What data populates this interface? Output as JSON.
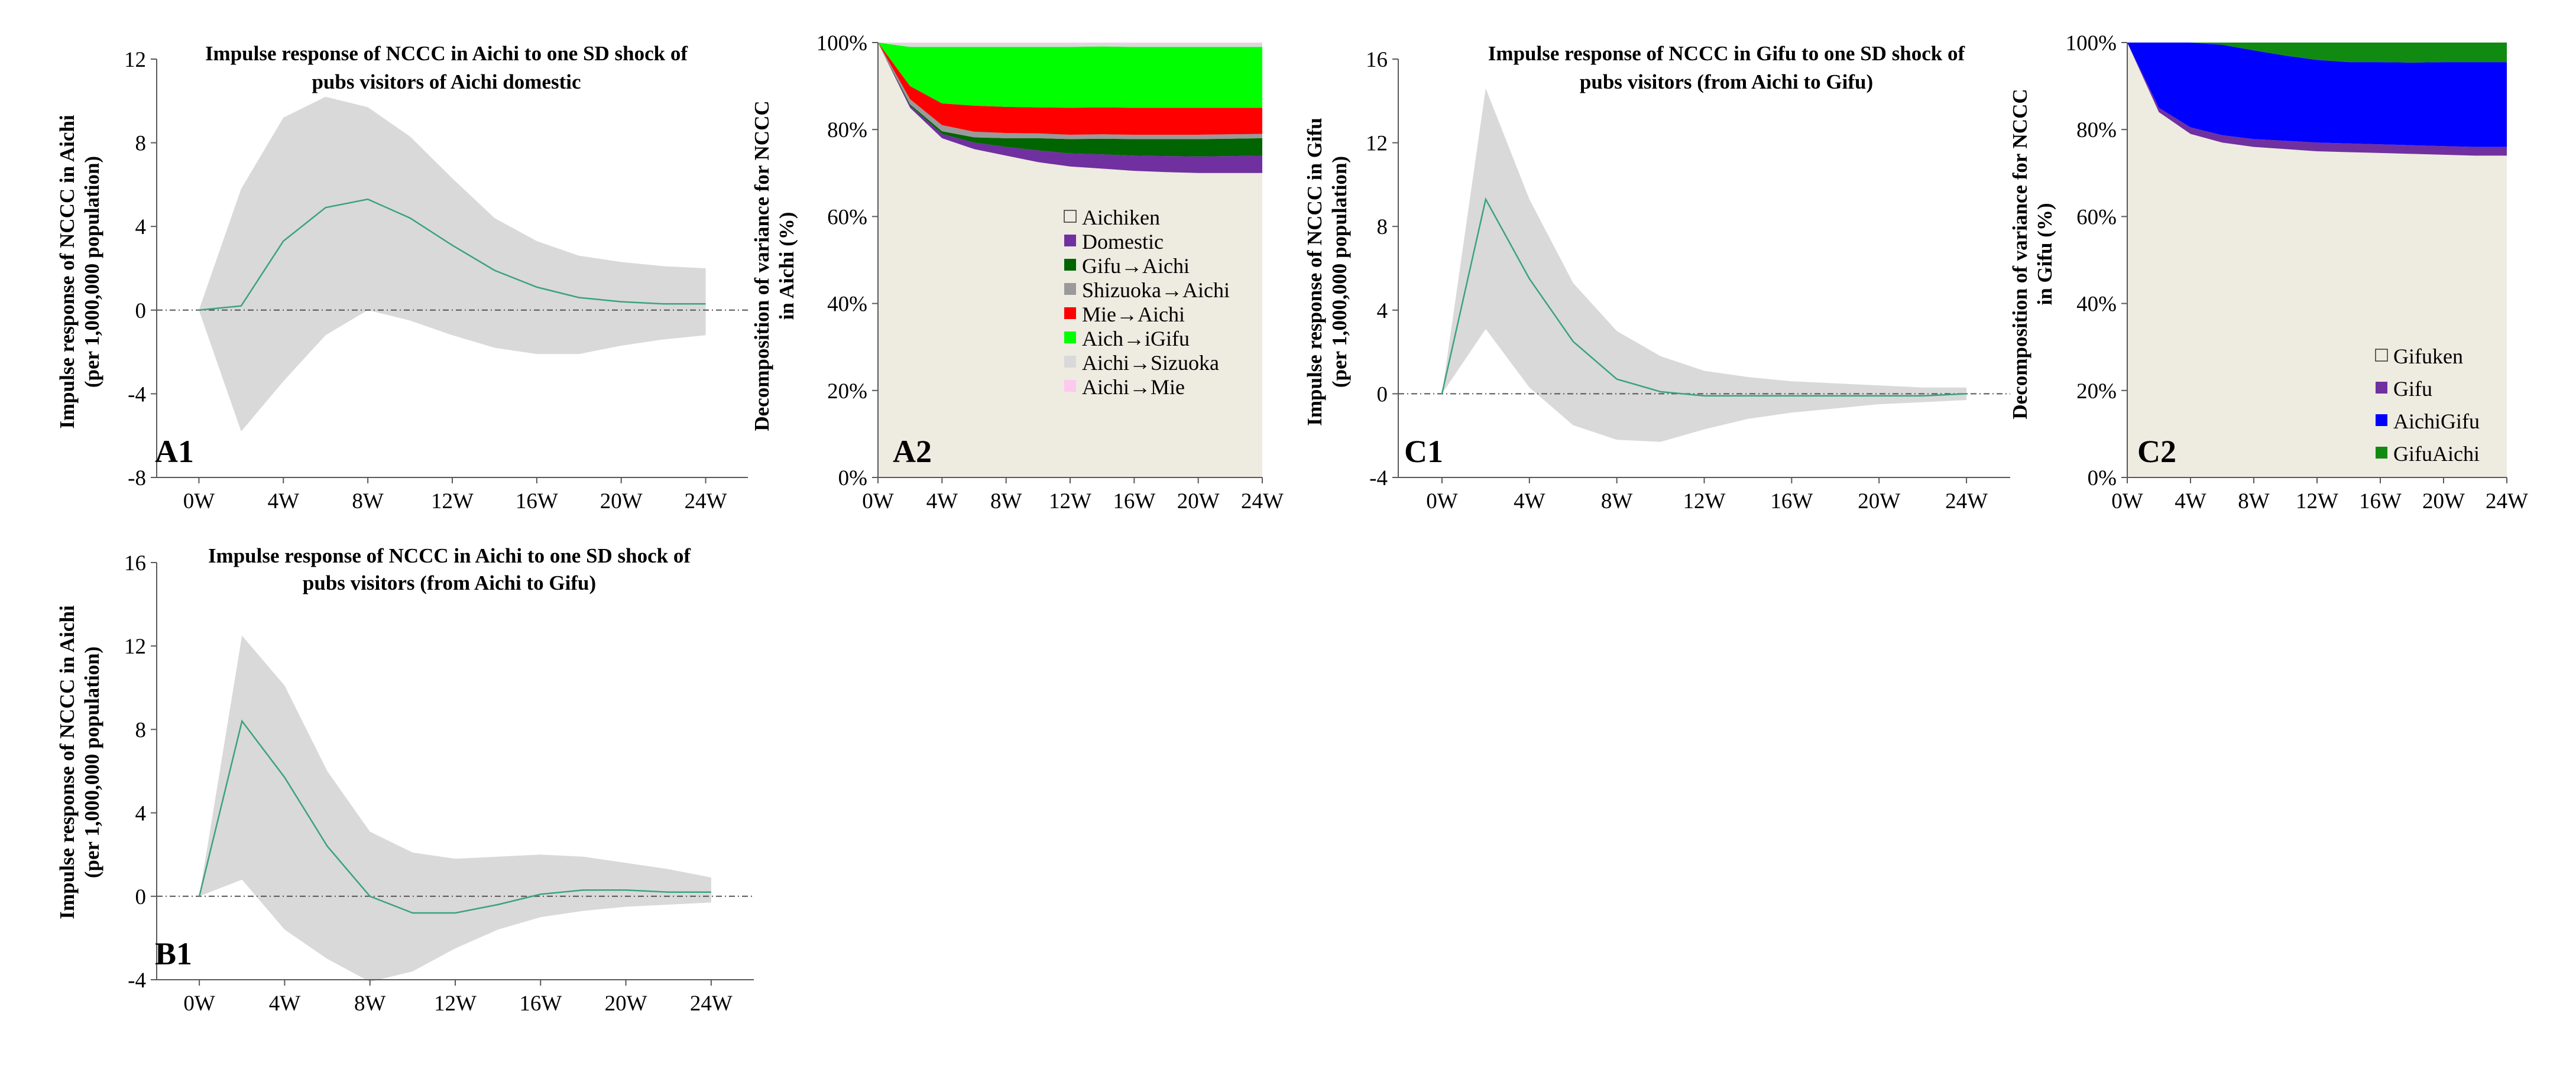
{
  "figure": {
    "background": "#ffffff"
  },
  "colors": {
    "band": "#d9d9d9",
    "irf_line": "#3aa37a",
    "zero_line": "#555555",
    "axis": "#595959",
    "plot_bg": "#eeebe1"
  },
  "chart_data": [
    {
      "id": "A1",
      "type": "line",
      "panel_label": "A1",
      "title": "Impulse response of NCCC in Aichi to one SD shock of pubs visitors of Aichi domestic",
      "title_lines": [
        "Impulse response of NCCC in Aichi to one SD shock of",
        "pubs visitors of Aichi domestic"
      ],
      "ylabel_lines": [
        "Impulse response of NCCC in Aichi",
        "(per 1,000,000 population)"
      ],
      "xlabel": "",
      "x": [
        0,
        2,
        4,
        6,
        8,
        10,
        12,
        14,
        16,
        18,
        20,
        22,
        24
      ],
      "xlim": [
        -2,
        26
      ],
      "ylim": [
        -8,
        12
      ],
      "yticks": [
        -8,
        -4,
        0,
        4,
        8,
        12
      ],
      "ytick_labels": [
        "-8",
        "-4",
        "0",
        "4",
        "8",
        "12"
      ],
      "xticks": [
        0,
        4,
        8,
        12,
        16,
        20,
        24
      ],
      "xtick_labels": [
        "0W",
        "4W",
        "8W",
        "12W",
        "16W",
        "20W",
        "24W"
      ],
      "series": [
        {
          "name": "Impulse response",
          "values": [
            0,
            0.2,
            3.3,
            4.9,
            5.3,
            4.4,
            3.1,
            1.9,
            1.1,
            0.6,
            0.4,
            0.3,
            0.3
          ]
        },
        {
          "name": "Upper bound",
          "values": [
            0,
            5.8,
            9.2,
            10.2,
            9.7,
            8.3,
            6.3,
            4.4,
            3.3,
            2.6,
            2.3,
            2.1,
            2.0
          ]
        },
        {
          "name": "Lower bound",
          "values": [
            0,
            -5.8,
            -3.4,
            -1.2,
            0,
            -0.5,
            -1.2,
            -1.8,
            -2.1,
            -2.1,
            -1.7,
            -1.4,
            -1.2
          ]
        }
      ]
    },
    {
      "id": "A2",
      "type": "area",
      "panel_label": "A2",
      "title": "",
      "ylabel_lines": [
        "Decomposition of variance for NCCC",
        "in Aichi (%)"
      ],
      "x": [
        0,
        2,
        4,
        6,
        8,
        10,
        12,
        14,
        16,
        18,
        20,
        22,
        24
      ],
      "xlim": [
        0,
        24
      ],
      "ylim": [
        0,
        100
      ],
      "yticks": [
        0,
        20,
        40,
        60,
        80,
        100
      ],
      "ytick_labels": [
        "0%",
        "20%",
        "40%",
        "60%",
        "80%",
        "100%"
      ],
      "xticks": [
        0,
        4,
        8,
        12,
        16,
        20,
        24
      ],
      "xtick_labels": [
        "0W",
        "4W",
        "8W",
        "12W",
        "16W",
        "20W",
        "24W"
      ],
      "series": [
        {
          "name": "Aichiken",
          "color": "#eeebe1",
          "values": [
            100,
            85,
            78,
            75.5,
            74,
            72.5,
            71.5,
            71,
            70.5,
            70.2,
            70,
            70,
            70
          ]
        },
        {
          "name": "Domestic",
          "color": "#7030a0",
          "values": [
            0,
            0.5,
            1,
            1.5,
            2,
            2.7,
            3,
            3.3,
            3.5,
            3.7,
            3.8,
            3.9,
            4
          ]
        },
        {
          "name": "Gifu→Aichi",
          "color": "#006400",
          "values": [
            0,
            0.3,
            0.6,
            1.2,
            2,
            2.8,
            3.3,
            3.6,
            3.8,
            3.9,
            4,
            4,
            4
          ]
        },
        {
          "name": "Shizuoka→Aichi",
          "color": "#9a9a9a",
          "values": [
            0,
            1.2,
            1.4,
            1.3,
            1.2,
            1.1,
            1,
            1,
            1,
            1,
            1,
            1,
            1
          ]
        },
        {
          "name": "Mie→Aichi",
          "color": "#ff0000",
          "values": [
            0,
            3,
            5,
            6,
            6,
            6,
            6.2,
            6.2,
            6.2,
            6.2,
            6.2,
            6.1,
            6
          ]
        },
        {
          "name": "Aich→iGifu",
          "color": "#00ff00",
          "values": [
            0,
            9,
            13,
            13.5,
            13.8,
            13.9,
            14,
            14,
            14,
            14,
            14,
            14,
            14
          ]
        },
        {
          "name": "Aichi→Sizuoka",
          "color": "#d9d9d9",
          "values": [
            0,
            0.8,
            0.8,
            0.8,
            0.8,
            0.8,
            0.8,
            0.8,
            0.8,
            0.8,
            0.8,
            0.8,
            0.8
          ]
        },
        {
          "name": "Aichi→Mie",
          "color": "#ffc8ee",
          "values": [
            0,
            0.2,
            0.2,
            0.2,
            0.2,
            0.2,
            0.2,
            0.2,
            0.2,
            0.2,
            0.2,
            0.2,
            0.2
          ]
        }
      ],
      "legend_title": "Aichiken",
      "legend_position": "center-right"
    },
    {
      "id": "C1",
      "type": "line",
      "panel_label": "C1",
      "title": "Impulse response of NCCC in Gifu to one SD shock of pubs visitors (from Aichi to Gifu)",
      "title_lines": [
        "Impulse response of NCCC in Gifu to one SD shock of",
        "pubs visitors (from Aichi to Gifu)"
      ],
      "ylabel_lines": [
        "Impulse response of NCCC in Gifu",
        "(per 1,000,000 population)"
      ],
      "x": [
        0,
        2,
        4,
        6,
        8,
        10,
        12,
        14,
        16,
        18,
        20,
        22,
        24
      ],
      "xlim": [
        -2,
        26
      ],
      "ylim": [
        -4,
        16
      ],
      "yticks": [
        -4,
        0,
        4,
        8,
        12,
        16
      ],
      "ytick_labels": [
        "-4",
        "0",
        "4",
        "8",
        "12",
        "16"
      ],
      "xticks": [
        0,
        4,
        8,
        12,
        16,
        20,
        24
      ],
      "xtick_labels": [
        "0W",
        "4W",
        "8W",
        "12W",
        "16W",
        "20W",
        "24W"
      ],
      "series": [
        {
          "name": "Impulse response",
          "values": [
            0,
            9.3,
            5.5,
            2.5,
            0.7,
            0.1,
            -0.1,
            -0.1,
            -0.1,
            -0.1,
            -0.1,
            -0.1,
            0
          ]
        },
        {
          "name": "Upper bound",
          "values": [
            0,
            14.6,
            9.3,
            5.3,
            3.0,
            1.8,
            1.1,
            0.8,
            0.6,
            0.5,
            0.4,
            0.3,
            0.3
          ]
        },
        {
          "name": "Lower bound",
          "values": [
            0,
            3.1,
            0.3,
            -1.5,
            -2.2,
            -2.3,
            -1.7,
            -1.2,
            -0.9,
            -0.7,
            -0.5,
            -0.4,
            -0.3
          ]
        }
      ]
    },
    {
      "id": "C2",
      "type": "area",
      "panel_label": "C2",
      "title": "",
      "ylabel_lines": [
        "Decomposition of variance for NCCC",
        "in Gifu (%)"
      ],
      "x": [
        0,
        2,
        4,
        6,
        8,
        10,
        12,
        14,
        16,
        18,
        20,
        22,
        24
      ],
      "xlim": [
        0,
        24
      ],
      "ylim": [
        0,
        100
      ],
      "yticks": [
        0,
        20,
        40,
        60,
        80,
        100
      ],
      "ytick_labels": [
        "0%",
        "20%",
        "40%",
        "60%",
        "80%",
        "100%"
      ],
      "xticks": [
        0,
        4,
        8,
        12,
        16,
        20,
        24
      ],
      "xtick_labels": [
        "0W",
        "4W",
        "8W",
        "12W",
        "16W",
        "20W",
        "24W"
      ],
      "series": [
        {
          "name": "Gifuken",
          "color": "#eeebe1",
          "values": [
            100,
            84,
            79,
            77,
            76,
            75.5,
            75,
            74.8,
            74.6,
            74.4,
            74.2,
            74,
            74
          ]
        },
        {
          "name": "Gifu",
          "color": "#7030a0",
          "values": [
            0,
            1,
            1.5,
            1.7,
            1.8,
            1.9,
            2,
            2,
            2,
            2,
            2,
            2,
            2
          ]
        },
        {
          "name": "AichiGifu",
          "color": "#0000ff",
          "values": [
            0,
            15,
            19.5,
            20.8,
            20.4,
            19.6,
            19,
            18.7,
            18.9,
            19,
            19.3,
            19.5,
            19.5
          ]
        },
        {
          "name": "GifuAichi",
          "color": "#118a11",
          "values": [
            0,
            0,
            0,
            0.5,
            1.8,
            3,
            4,
            4.5,
            4.5,
            4.6,
            4.5,
            4.5,
            4.5
          ]
        }
      ],
      "legend_position": "bottom-right"
    },
    {
      "id": "B1",
      "type": "line",
      "panel_label": "B1",
      "title": "Impulse response of NCCC in Aichi to one SD shock of pubs visitors (from Aichi to Gifu)",
      "title_lines": [
        "Impulse response of NCCC in Aichi to one SD shock of",
        "pubs visitors (from Aichi to Gifu)"
      ],
      "ylabel_lines": [
        "Impulse response of NCCC in Aichi",
        "(per 1,000,000 population)"
      ],
      "x": [
        0,
        2,
        4,
        6,
        8,
        10,
        12,
        14,
        16,
        18,
        20,
        22,
        24
      ],
      "xlim": [
        -2,
        26
      ],
      "ylim": [
        -4,
        16
      ],
      "yticks": [
        -4,
        0,
        4,
        8,
        12,
        16
      ],
      "ytick_labels": [
        "-4",
        "0",
        "4",
        "8",
        "12",
        "16"
      ],
      "xticks": [
        0,
        4,
        8,
        12,
        16,
        20,
        24
      ],
      "xtick_labels": [
        "0W",
        "4W",
        "8W",
        "12W",
        "16W",
        "20W",
        "24W"
      ],
      "series": [
        {
          "name": "Impulse response",
          "values": [
            0,
            8.4,
            5.7,
            2.4,
            0,
            -0.8,
            -0.8,
            -0.4,
            0.1,
            0.3,
            0.3,
            0.2,
            0.2
          ]
        },
        {
          "name": "Upper bound",
          "values": [
            0,
            12.5,
            10.1,
            6.0,
            3.1,
            2.1,
            1.8,
            1.9,
            2.0,
            1.9,
            1.6,
            1.3,
            0.9
          ]
        },
        {
          "name": "Lower bound",
          "values": [
            0,
            0.8,
            -1.6,
            -3.0,
            -4.1,
            -3.6,
            -2.5,
            -1.6,
            -1.0,
            -0.7,
            -0.5,
            -0.4,
            -0.3
          ]
        }
      ]
    }
  ]
}
